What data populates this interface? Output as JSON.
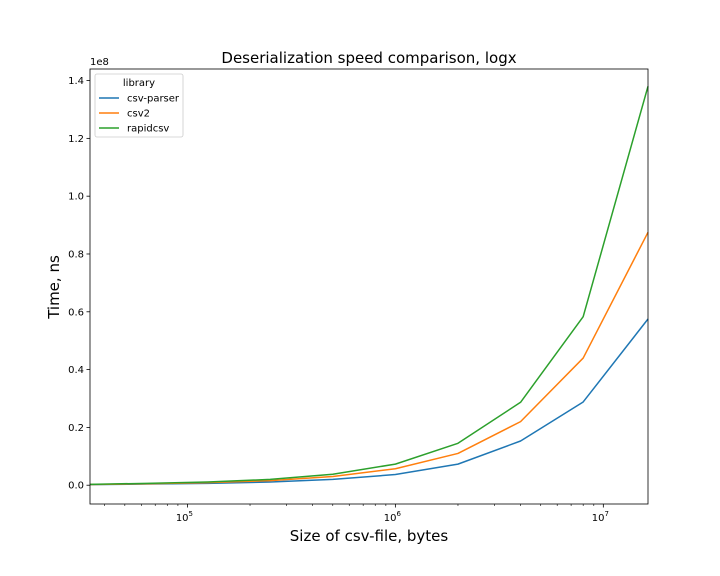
{
  "chart_data": {
    "type": "line",
    "title": "Deserialization speed comparison, logx",
    "xlabel": "Size of csv-file, bytes",
    "ylabel": "Time, ns",
    "xscale": "log",
    "xlim": [
      34000,
      16400000
    ],
    "ylim": [
      -6500000,
      144000000
    ],
    "y_offset_label": "1e8",
    "x_ticks": [
      {
        "value": 100000,
        "base": "10",
        "exp": "5"
      },
      {
        "value": 1000000,
        "base": "10",
        "exp": "6"
      },
      {
        "value": 10000000,
        "base": "10",
        "exp": "7"
      }
    ],
    "y_ticks": [
      {
        "value": 0,
        "label": "0.0"
      },
      {
        "value": 20000000,
        "label": "0.2"
      },
      {
        "value": 40000000,
        "label": "0.4"
      },
      {
        "value": 60000000,
        "label": "0.6"
      },
      {
        "value": 80000000,
        "label": "0.8"
      },
      {
        "value": 100000000,
        "label": "1.0"
      },
      {
        "value": 120000000,
        "label": "1.2"
      },
      {
        "value": 140000000,
        "label": "1.4"
      }
    ],
    "x": [
      34000,
      64000,
      125000,
      250000,
      500000,
      1000000,
      2000000,
      4000000,
      8000000,
      16400000
    ],
    "series": [
      {
        "name": "csv-parser",
        "color": "#1f77b4",
        "values": [
          200000,
          400000,
          650000,
          1100000,
          2000000,
          3700000,
          7300000,
          15300000,
          28800000,
          57500000
        ]
      },
      {
        "name": "csv2",
        "color": "#ff7f0e",
        "values": [
          250000,
          500000,
          900000,
          1600000,
          3000000,
          5700000,
          11000000,
          22000000,
          44000000,
          87500000
        ]
      },
      {
        "name": "rapidcsv",
        "color": "#2ca02c",
        "values": [
          300000,
          650000,
          1100000,
          2000000,
          3800000,
          7300000,
          14500000,
          28700000,
          58300000,
          138000000
        ]
      }
    ],
    "legend": {
      "title": "library",
      "placement": "top-left"
    },
    "grid": false
  }
}
